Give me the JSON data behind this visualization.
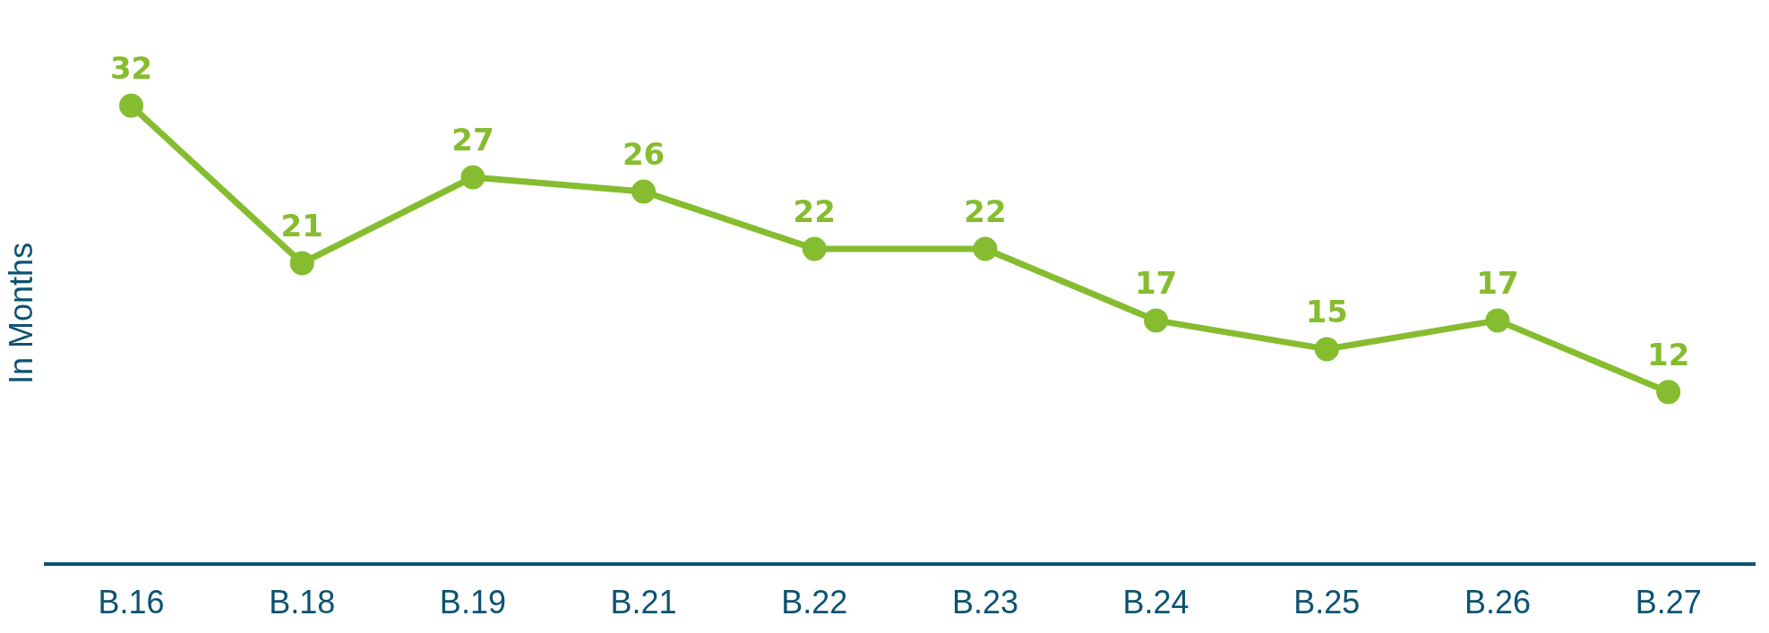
{
  "chart_data": {
    "type": "line",
    "ylabel": "In Months",
    "categories": [
      "B.16",
      "B.18",
      "B.19",
      "B.21",
      "B.22",
      "B.23",
      "B.24",
      "B.25",
      "B.26",
      "B.27"
    ],
    "series": [
      {
        "color": "#86bc2f",
        "values": [
          32,
          21,
          27,
          26,
          22,
          22,
          17,
          15,
          17,
          12
        ]
      }
    ],
    "marker": "circle",
    "data_labels": true,
    "grid": false,
    "legend": false
  }
}
